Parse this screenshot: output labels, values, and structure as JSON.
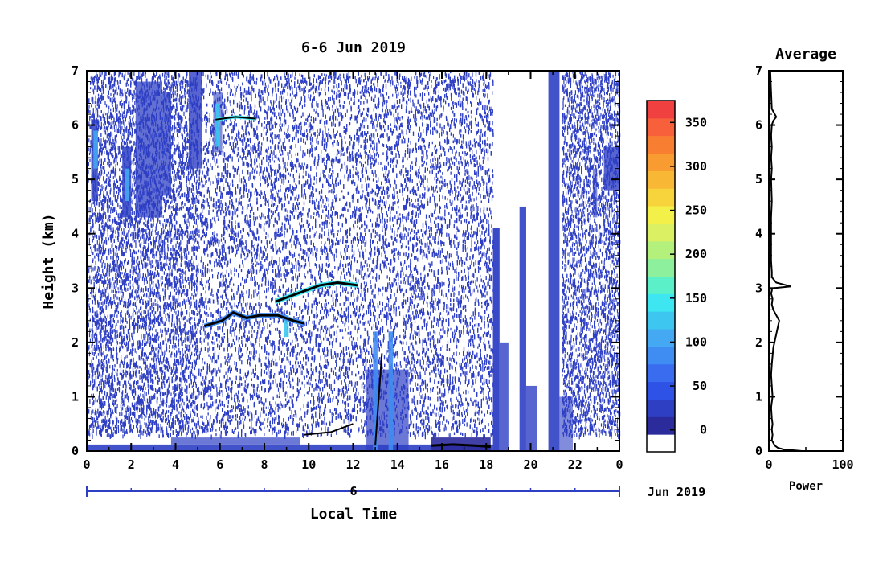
{
  "chart_data": [
    {
      "type": "heatmap",
      "title": "6-6 Jun 2019",
      "xlabel": "Local Time",
      "ylabel": "Height (km)",
      "xlim": [
        0,
        24
      ],
      "ylim": [
        0,
        7
      ],
      "x_ticks": [
        "0",
        "2",
        "4",
        "6",
        "8",
        "10",
        "12",
        "14",
        "16",
        "18",
        "20",
        "22",
        "0"
      ],
      "y_ticks": [
        "0",
        "1",
        "2",
        "3",
        "4",
        "5",
        "6",
        "7"
      ],
      "date_bar": {
        "day": "6",
        "month_label": "Jun 2019"
      },
      "colorbar": {
        "ticks": [
          "0",
          "50",
          "100",
          "150",
          "200",
          "250",
          "300",
          "350"
        ],
        "range": [
          -25,
          375
        ],
        "colors": [
          "#ffffff",
          "#2b2b9c",
          "#2e3fc4",
          "#2f52e6",
          "#3a6cf0",
          "#3f8cf2",
          "#45a8f2",
          "#3cc6f0",
          "#3de6f0",
          "#5cf0c8",
          "#8cf09c",
          "#b4f07c",
          "#dcf064",
          "#f4f04a",
          "#f8d43c",
          "#f8b836",
          "#f89c32",
          "#f87e32",
          "#f8603c",
          "#f04040"
        ]
      },
      "features": [
        {
          "name": "layer near 2.4 km",
          "x_range": [
            5.3,
            9.8
          ],
          "height_km": [
            2.3,
            2.6
          ]
        },
        {
          "name": "layer near 3.0 km",
          "x_range": [
            8.5,
            12.2
          ],
          "height_km": [
            2.8,
            3.1
          ]
        },
        {
          "name": "layer near 6.1 km",
          "x_range": [
            5.8,
            7.6
          ],
          "height_km": [
            6.0,
            6.2
          ]
        },
        {
          "name": "convective returns",
          "x_range": [
            12.7,
            14.2
          ],
          "height_km": [
            0,
            2.2
          ]
        },
        {
          "name": "near-surface echoes",
          "x_range": [
            15.5,
            18.2
          ],
          "height_km": [
            0,
            0.2
          ]
        },
        {
          "name": "strong column",
          "x_range": [
            18.3,
            21.3
          ],
          "height_km": [
            0,
            4.5
          ]
        }
      ]
    },
    {
      "type": "line",
      "title": "Average",
      "xlabel": "Power",
      "ylabel": "",
      "xlim": [
        0,
        100
      ],
      "ylim": [
        0,
        7
      ],
      "x_ticks": [
        "0",
        "100"
      ],
      "y_ticks": [
        "0",
        "1",
        "2",
        "3",
        "4",
        "5",
        "6",
        "7"
      ],
      "x": [
        45,
        20,
        12,
        8,
        4,
        5,
        4,
        5,
        4,
        3,
        5,
        4,
        3,
        4,
        6,
        14,
        6,
        4,
        5,
        4,
        3,
        4,
        4,
        5,
        8,
        30,
        10,
        4,
        4,
        3,
        3,
        3,
        3,
        4,
        3,
        4,
        3,
        4,
        3,
        4,
        6,
        10,
        4,
        3,
        2
      ],
      "y": [
        0,
        0.03,
        0.06,
        0.1,
        0.2,
        0.3,
        0.4,
        0.5,
        0.6,
        0.8,
        1.0,
        1.2,
        1.4,
        1.6,
        1.9,
        2.4,
        2.6,
        2.7,
        2.8,
        2.85,
        2.9,
        2.95,
        2.97,
        2.99,
        3.0,
        3.03,
        3.1,
        3.2,
        3.3,
        3.5,
        3.8,
        4.0,
        4.3,
        4.6,
        5.0,
        5.2,
        5.4,
        5.6,
        5.8,
        6.0,
        6.08,
        6.15,
        6.3,
        6.6,
        7.0
      ]
    }
  ]
}
